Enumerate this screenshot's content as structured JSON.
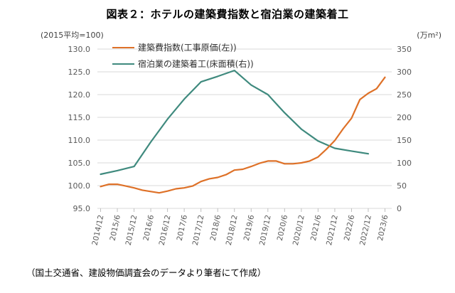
{
  "title": "図表２：ホテルの建築費指数と宿泊業の建築着工",
  "footer_note": "（国土交通省、建設物価調査会のデータより筆者にて作成）",
  "axes": {
    "left_unit": "(2015平均=100)",
    "right_unit": "(万m²)"
  },
  "chart_data": {
    "type": "line",
    "title": "図表２：ホテルの建築費指数と宿泊業の建築着工",
    "source_note": "（国土交通省、建設物価調査会のデータより筆者にて作成）",
    "grid": "horizontal-only",
    "legend_position": "top-left-inside",
    "x_tick_labels": [
      "2014/12",
      "2015/6",
      "2015/12",
      "2016/6",
      "2016/12",
      "2017/6",
      "2017/12",
      "2018/6",
      "2018/12",
      "2019/6",
      "2019/12",
      "2020/6",
      "2020/12",
      "2021/6",
      "2021/12",
      "2022/6",
      "2022/12",
      "2023/6"
    ],
    "x_tick_label_rotation_deg": -78,
    "left_axis": {
      "label": "(2015平均=100)",
      "min": 95.0,
      "max": 130.0,
      "step": 5.0,
      "decimals": 1,
      "tick_labels": [
        "95.0",
        "100.0",
        "105.0",
        "110.0",
        "115.0",
        "120.0",
        "125.0",
        "130.0"
      ]
    },
    "right_axis": {
      "label": "(万m²)",
      "min": 0,
      "max": 350,
      "step": 50,
      "tick_labels": [
        "0",
        "50",
        "100",
        "150",
        "200",
        "250",
        "300",
        "350"
      ]
    },
    "series": [
      {
        "name": "建築費指数(工事原価(左))",
        "axis": "left",
        "color": "#DE7128",
        "frequency": "quarterly",
        "start": "2014/12",
        "end": "2023/6",
        "values": [
          99.8,
          100.3,
          100.3,
          99.9,
          99.5,
          99.0,
          98.7,
          98.4,
          98.8,
          99.3,
          99.5,
          99.9,
          100.9,
          101.5,
          101.8,
          102.4,
          103.4,
          103.6,
          104.2,
          104.9,
          105.4,
          105.4,
          104.8,
          104.8,
          105.0,
          105.4,
          106.3,
          108.0,
          109.9,
          112.5,
          114.8,
          118.9,
          120.3,
          121.3,
          123.8
        ]
      },
      {
        "name": "宿泊業の建築着工(床面積(右))",
        "axis": "right",
        "color": "#3F8A7E",
        "frequency": "semiannual",
        "start": "2014/12",
        "end": "2022/12",
        "values": [
          75,
          83,
          92,
          146,
          196,
          240,
          278,
          290,
          303,
          271,
          250,
          210,
          174,
          148,
          132,
          126,
          120
        ]
      }
    ]
  }
}
